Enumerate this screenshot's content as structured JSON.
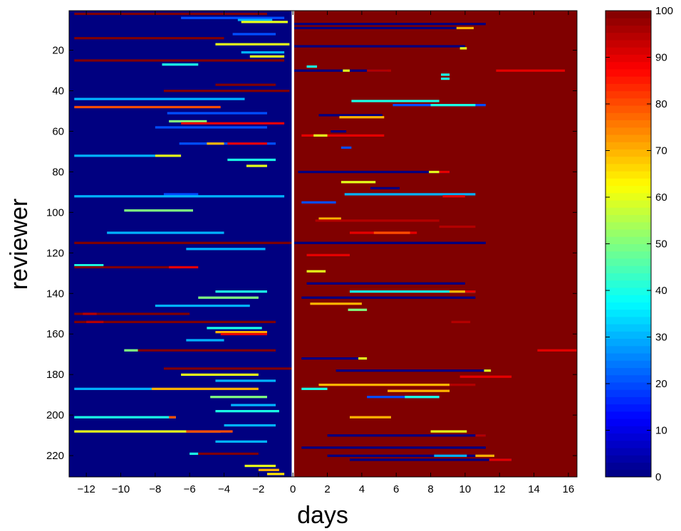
{
  "chart_data": {
    "type": "heatmap",
    "title": "",
    "xlabel": "days",
    "ylabel": "reviewer",
    "xlim": [
      -13,
      16.5
    ],
    "ylim": [
      230,
      1
    ],
    "n_rows": 230,
    "xticks": [
      -12,
      -10,
      -8,
      -6,
      -4,
      -2,
      0,
      2,
      4,
      6,
      8,
      10,
      12,
      14,
      16
    ],
    "xtick_labels": [
      "−12",
      "−10",
      "−8",
      "−6",
      "−4",
      "−2",
      "0",
      "2",
      "4",
      "6",
      "8",
      "10",
      "12",
      "14",
      "16"
    ],
    "yticks": [
      20,
      40,
      60,
      80,
      100,
      120,
      140,
      160,
      180,
      200,
      220
    ],
    "ytick_labels": [
      "20",
      "40",
      "60",
      "80",
      "100",
      "120",
      "140",
      "160",
      "180",
      "200",
      "220"
    ],
    "reference_line_x": 0,
    "colorbar": {
      "range": [
        0,
        100
      ],
      "ticks": [
        0,
        10,
        20,
        30,
        40,
        50,
        60,
        70,
        80,
        90,
        100
      ],
      "tick_labels": [
        "0",
        "10",
        "20",
        "30",
        "40",
        "50",
        "60",
        "70",
        "80",
        "90",
        "100"
      ],
      "colormap": "jet"
    },
    "background": {
      "before_day_0": 0,
      "after_day_0": 100
    },
    "segments": [
      {
        "row": 2,
        "x0": -12.7,
        "x1": -1.5,
        "v": 100
      },
      {
        "row": 4,
        "x0": -6.5,
        "x1": -0.5,
        "v": 20
      },
      {
        "row": 5,
        "x0": -3.2,
        "x1": -1.2,
        "v": 30
      },
      {
        "row": 6,
        "x0": -3,
        "x1": -0.3,
        "v": 60
      },
      {
        "row": 7,
        "x0": 0,
        "x1": 11.2,
        "v": 0
      },
      {
        "row": 9,
        "x0": 0,
        "x1": 10.5,
        "v": 0
      },
      {
        "row": 9,
        "x0": 9.5,
        "x1": 10.5,
        "v": 70
      },
      {
        "row": 12,
        "x0": -3.5,
        "x1": -1,
        "v": 20
      },
      {
        "row": 14,
        "x0": -12.7,
        "x1": -4,
        "v": 100
      },
      {
        "row": 17,
        "x0": -4.5,
        "x1": -0.2,
        "v": 60
      },
      {
        "row": 18,
        "x0": 0,
        "x1": 10,
        "v": 0
      },
      {
        "row": 19,
        "x0": 9.7,
        "x1": 10.1,
        "v": 60
      },
      {
        "row": 21,
        "x0": -3,
        "x1": -0.5,
        "v": 30
      },
      {
        "row": 23,
        "x0": -2.5,
        "x1": -0.5,
        "v": 60
      },
      {
        "row": 25,
        "x0": -12.7,
        "x1": -0.5,
        "v": 100
      },
      {
        "row": 27,
        "x0": -7.6,
        "x1": -5.5,
        "v": 40
      },
      {
        "row": 28,
        "x0": 0.8,
        "x1": 1.4,
        "v": 40
      },
      {
        "row": 30,
        "x0": 0,
        "x1": 5.5,
        "v": 0
      },
      {
        "row": 30,
        "x0": 2.9,
        "x1": 3.3,
        "v": 60
      },
      {
        "row": 30,
        "x0": 4.3,
        "x1": 5.7,
        "v": 95
      },
      {
        "row": 30,
        "x0": 11.8,
        "x1": 15.8,
        "v": 90
      },
      {
        "row": 32,
        "x0": 8.6,
        "x1": 9.1,
        "v": 40
      },
      {
        "row": 34,
        "x0": 8.6,
        "x1": 9.1,
        "v": 40
      },
      {
        "row": 37,
        "x0": -4.5,
        "x1": -1,
        "v": 100
      },
      {
        "row": 40,
        "x0": -7.5,
        "x1": -0.2,
        "v": 100
      },
      {
        "row": 41,
        "x0": 0,
        "x1": 11.2,
        "v": 100
      },
      {
        "row": 44,
        "x0": -12.7,
        "x1": -2.8,
        "v": 30
      },
      {
        "row": 45,
        "x0": 3.4,
        "x1": 8.5,
        "v": 40
      },
      {
        "row": 47,
        "x0": 5.8,
        "x1": 11.2,
        "v": 20
      },
      {
        "row": 47,
        "x0": 8,
        "x1": 10.6,
        "v": 40
      },
      {
        "row": 48,
        "x0": -12.7,
        "x1": -4.2,
        "v": 80
      },
      {
        "row": 51,
        "x0": -7.3,
        "x1": -1.5,
        "v": 20
      },
      {
        "row": 52,
        "x0": 1.5,
        "x1": 5.2,
        "v": 0
      },
      {
        "row": 53,
        "x0": 2.7,
        "x1": 5.3,
        "v": 70
      },
      {
        "row": 55,
        "x0": -7.2,
        "x1": -5,
        "v": 50
      },
      {
        "row": 56,
        "x0": -6.5,
        "x1": -0.5,
        "v": 90
      },
      {
        "row": 58,
        "x0": -8,
        "x1": -1.5,
        "v": 20
      },
      {
        "row": 60,
        "x0": 2.2,
        "x1": 3.1,
        "v": 0
      },
      {
        "row": 62,
        "x0": 0.5,
        "x1": 5.3,
        "v": 90
      },
      {
        "row": 62,
        "x0": 1.2,
        "x1": 2,
        "v": 60
      },
      {
        "row": 66,
        "x0": -6.6,
        "x1": -1,
        "v": 20
      },
      {
        "row": 66,
        "x0": -5,
        "x1": -4,
        "v": 70
      },
      {
        "row": 66,
        "x0": -3.8,
        "x1": -1.5,
        "v": 90
      },
      {
        "row": 68,
        "x0": 2.8,
        "x1": 3.4,
        "v": 20
      },
      {
        "row": 72,
        "x0": -12.7,
        "x1": -8,
        "v": 30
      },
      {
        "row": 72,
        "x0": -8,
        "x1": -6.5,
        "v": 60
      },
      {
        "row": 74,
        "x0": -3.8,
        "x1": -1,
        "v": 40
      },
      {
        "row": 77,
        "x0": -2.7,
        "x1": -1.5,
        "v": 60
      },
      {
        "row": 80,
        "x0": 0.3,
        "x1": 9.1,
        "v": 0
      },
      {
        "row": 80,
        "x0": 7.9,
        "x1": 8.5,
        "v": 60
      },
      {
        "row": 80,
        "x0": 8.5,
        "x1": 9.1,
        "v": 90
      },
      {
        "row": 85,
        "x0": 2.8,
        "x1": 4.8,
        "v": 60
      },
      {
        "row": 88,
        "x0": 4.5,
        "x1": 6.2,
        "v": 0
      },
      {
        "row": 91,
        "x0": -7.5,
        "x1": -5.5,
        "v": 20
      },
      {
        "row": 91,
        "x0": 3,
        "x1": 10.6,
        "v": 30
      },
      {
        "row": 92,
        "x0": -12.7,
        "x1": -0.5,
        "v": 30
      },
      {
        "row": 92,
        "x0": 8.7,
        "x1": 10,
        "v": 90
      },
      {
        "row": 95,
        "x0": 0.5,
        "x1": 2.5,
        "v": 20
      },
      {
        "row": 98,
        "x0": -3.8,
        "x1": -1,
        "v": 0
      },
      {
        "row": 99,
        "x0": -9.8,
        "x1": -5.8,
        "v": 50
      },
      {
        "row": 103,
        "x0": 1.5,
        "x1": 2.8,
        "v": 70
      },
      {
        "row": 104,
        "x0": 1.3,
        "x1": 8.5,
        "v": 95
      },
      {
        "row": 107,
        "x0": 8.5,
        "x1": 10.6,
        "v": 95
      },
      {
        "row": 110,
        "x0": -10.8,
        "x1": -4,
        "v": 30
      },
      {
        "row": 110,
        "x0": 3.3,
        "x1": 7.2,
        "v": 90
      },
      {
        "row": 110,
        "x0": 4.7,
        "x1": 6.8,
        "v": 80
      },
      {
        "row": 115,
        "x0": -12.7,
        "x1": 0,
        "v": 100
      },
      {
        "row": 115,
        "x0": 0,
        "x1": 11.2,
        "v": 0
      },
      {
        "row": 118,
        "x0": -6.2,
        "x1": -1.6,
        "v": 30
      },
      {
        "row": 118,
        "x0": 9.1,
        "x1": 10,
        "v": 100
      },
      {
        "row": 121,
        "x0": 0.8,
        "x1": 3.3,
        "v": 90
      },
      {
        "row": 126,
        "x0": -12.7,
        "x1": -11,
        "v": 40
      },
      {
        "row": 127,
        "x0": -12.7,
        "x1": -6.5,
        "v": 100
      },
      {
        "row": 127,
        "x0": -7.2,
        "x1": -5.5,
        "v": 90
      },
      {
        "row": 129,
        "x0": 0.8,
        "x1": 1.9,
        "v": 60
      },
      {
        "row": 135,
        "x0": 0.8,
        "x1": 10,
        "v": 0
      },
      {
        "row": 139,
        "x0": -4.5,
        "x1": -1.5,
        "v": 40
      },
      {
        "row": 139,
        "x0": 3.3,
        "x1": 10.6,
        "v": 40
      },
      {
        "row": 139,
        "x0": 9.1,
        "x1": 10,
        "v": 70
      },
      {
        "row": 139,
        "x0": 10,
        "x1": 10.6,
        "v": 90
      },
      {
        "row": 142,
        "x0": -5.5,
        "x1": -2,
        "v": 50
      },
      {
        "row": 142,
        "x0": 0.5,
        "x1": 10.6,
        "v": 0
      },
      {
        "row": 145,
        "x0": 1,
        "x1": 4,
        "v": 70
      },
      {
        "row": 146,
        "x0": -8,
        "x1": -2.5,
        "v": 30
      },
      {
        "row": 148,
        "x0": 3.2,
        "x1": 4.3,
        "v": 50
      },
      {
        "row": 150,
        "x0": -12.7,
        "x1": -6,
        "v": 100
      },
      {
        "row": 150,
        "x0": -12.2,
        "x1": -11.4,
        "v": 95
      },
      {
        "row": 154,
        "x0": -12.7,
        "x1": -1,
        "v": 100
      },
      {
        "row": 154,
        "x0": -12,
        "x1": -11,
        "v": 95
      },
      {
        "row": 154,
        "x0": 9.2,
        "x1": 10.3,
        "v": 95
      },
      {
        "row": 157,
        "x0": -5,
        "x1": -1.8,
        "v": 40
      },
      {
        "row": 159,
        "x0": -4.5,
        "x1": -1.5,
        "v": 70
      },
      {
        "row": 160,
        "x0": -4.2,
        "x1": -1.5,
        "v": 90
      },
      {
        "row": 163,
        "x0": -6.2,
        "x1": -4,
        "v": 30
      },
      {
        "row": 168,
        "x0": -9.8,
        "x1": -9,
        "v": 50
      },
      {
        "row": 168,
        "x0": -9,
        "x1": -1,
        "v": 100
      },
      {
        "row": 168,
        "x0": 14.2,
        "x1": 16.5,
        "v": 90
      },
      {
        "row": 172,
        "x0": 0.5,
        "x1": 4.3,
        "v": 0
      },
      {
        "row": 172,
        "x0": 3.8,
        "x1": 4.3,
        "v": 60
      },
      {
        "row": 175,
        "x0": -8,
        "x1": -1,
        "v": 0
      },
      {
        "row": 177,
        "x0": -7.5,
        "x1": 0,
        "v": 100
      },
      {
        "row": 178,
        "x0": 2.5,
        "x1": 11.5,
        "v": 0
      },
      {
        "row": 178,
        "x0": 11.1,
        "x1": 11.5,
        "v": 60
      },
      {
        "row": 180,
        "x0": -6.5,
        "x1": -2,
        "v": 60
      },
      {
        "row": 181,
        "x0": 9.7,
        "x1": 12.7,
        "v": 90
      },
      {
        "row": 183,
        "x0": -4.5,
        "x1": -1,
        "v": 30
      },
      {
        "row": 185,
        "x0": 1.5,
        "x1": 9.1,
        "v": 70
      },
      {
        "row": 185,
        "x0": 9.1,
        "x1": 10.6,
        "v": 95
      },
      {
        "row": 187,
        "x0": -12.7,
        "x1": -8.2,
        "v": 30
      },
      {
        "row": 187,
        "x0": -8.2,
        "x1": -2,
        "v": 70
      },
      {
        "row": 187,
        "x0": 0.5,
        "x1": 2,
        "v": 40
      },
      {
        "row": 188,
        "x0": 5.5,
        "x1": 9.1,
        "v": 70
      },
      {
        "row": 191,
        "x0": -4.8,
        "x1": -1.5,
        "v": 50
      },
      {
        "row": 191,
        "x0": 4.3,
        "x1": 8.5,
        "v": 20
      },
      {
        "row": 191,
        "x0": 6.5,
        "x1": 8.5,
        "v": 40
      },
      {
        "row": 195,
        "x0": -3.6,
        "x1": -1,
        "v": 30
      },
      {
        "row": 198,
        "x0": -4.5,
        "x1": -0.8,
        "v": 40
      },
      {
        "row": 201,
        "x0": -12.7,
        "x1": -6.8,
        "v": 40
      },
      {
        "row": 201,
        "x0": -7.2,
        "x1": -6.8,
        "v": 80
      },
      {
        "row": 201,
        "x0": 3.3,
        "x1": 5.7,
        "v": 70
      },
      {
        "row": 205,
        "x0": -4,
        "x1": -1,
        "v": 30
      },
      {
        "row": 208,
        "x0": -12.7,
        "x1": -4.2,
        "v": 60
      },
      {
        "row": 208,
        "x0": -6.2,
        "x1": -3.5,
        "v": 80
      },
      {
        "row": 208,
        "x0": 8,
        "x1": 10.1,
        "v": 60
      },
      {
        "row": 210,
        "x0": 2,
        "x1": 11.2,
        "v": 0
      },
      {
        "row": 210,
        "x0": 10.6,
        "x1": 11.2,
        "v": 95
      },
      {
        "row": 213,
        "x0": -4.5,
        "x1": -1.5,
        "v": 30
      },
      {
        "row": 216,
        "x0": 0.5,
        "x1": 11.2,
        "v": 0
      },
      {
        "row": 219,
        "x0": -6,
        "x1": -5.5,
        "v": 40
      },
      {
        "row": 219,
        "x0": -5.5,
        "x1": -2,
        "v": 100
      },
      {
        "row": 220,
        "x0": 2,
        "x1": 11.7,
        "v": 0
      },
      {
        "row": 220,
        "x0": 8.2,
        "x1": 10.1,
        "v": 30
      },
      {
        "row": 220,
        "x0": 10.6,
        "x1": 11.7,
        "v": 70
      },
      {
        "row": 222,
        "x0": 3.3,
        "x1": 12.7,
        "v": 0
      },
      {
        "row": 222,
        "x0": 11.4,
        "x1": 12.7,
        "v": 90
      },
      {
        "row": 225,
        "x0": -2.8,
        "x1": -1,
        "v": 60
      },
      {
        "row": 227,
        "x0": -2,
        "x1": -0.8,
        "v": 70
      },
      {
        "row": 229,
        "x0": -1.5,
        "x1": -0.5,
        "v": 65
      }
    ]
  }
}
